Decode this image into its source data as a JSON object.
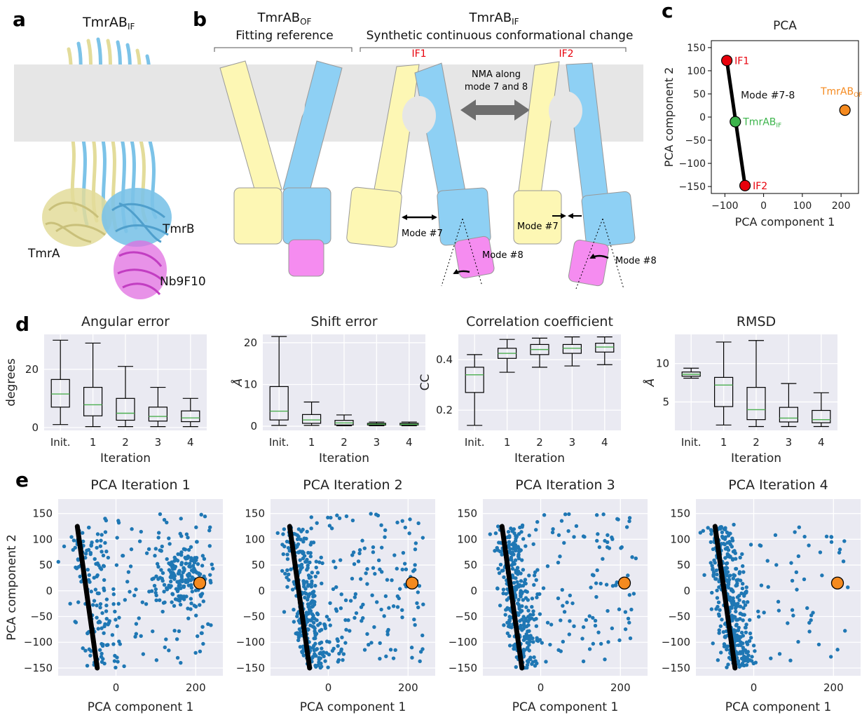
{
  "panels": {
    "a": {
      "letter": "a",
      "title_main": "TmrAB",
      "title_sub": "IF",
      "labels": {
        "tmra": "TmrA",
        "tmrb": "TmrB",
        "nb": "Nb9F10"
      },
      "colors": {
        "tmra": "#e3dc9a",
        "tmrb": "#7cc3e8",
        "nb": "#e06ee0"
      }
    },
    "b": {
      "letter": "b",
      "ref_title_main": "TmrAB",
      "ref_title_sub": "OF",
      "ref_subtitle": "Fitting reference",
      "syn_title_main": "TmrAB",
      "syn_title_sub": "IF",
      "syn_subtitle": "Synthetic continuous conformational change",
      "if1": "IF1",
      "if2": "IF2",
      "nma_line1": "NMA along",
      "nma_line2": "mode 7 and 8",
      "mode7": "Mode #7",
      "mode8": "Mode #8",
      "colors": {
        "yellow": "#fdf7b4",
        "blue": "#8ed0f4",
        "magenta": "#f58cf0",
        "membrane": "#e6e6e6",
        "red": "#e8000b"
      }
    },
    "c": {
      "letter": "c",
      "chart_data": {
        "type": "scatter",
        "title": "PCA",
        "xlabel": "PCA component 1",
        "ylabel": "PCA component 2",
        "xlim": [
          -135,
          245
        ],
        "ylim": [
          -165,
          165
        ],
        "xticks": [
          -100,
          0,
          100,
          200
        ],
        "yticks": [
          150,
          100,
          50,
          0,
          -50,
          -100,
          -150
        ],
        "line": {
          "label": "Mode #7-8",
          "x": [
            -95,
            -48
          ],
          "y": [
            122,
            -148
          ]
        },
        "points": [
          {
            "name": "IF1",
            "label": "IF1",
            "x": -95,
            "y": 122,
            "color": "#e8000b"
          },
          {
            "name": "TmrAB_IF",
            "label": "TmrAB",
            "label_sub": "IF",
            "x": -73,
            "y": -10,
            "color": "#3cb44b"
          },
          {
            "name": "IF2",
            "label": "IF2",
            "x": -48,
            "y": -148,
            "color": "#e8000b"
          },
          {
            "name": "TmrAB_OF",
            "label": "TmrAB",
            "label_sub": "OF",
            "x": 210,
            "y": 15,
            "color": "#f58a1f"
          }
        ]
      }
    },
    "d": {
      "letter": "d",
      "chart_data": [
        {
          "type": "box",
          "title": "Angular error",
          "xlabel": "Iteration",
          "ylabel": "degrees",
          "categories": [
            "Init.",
            "1",
            "2",
            "3",
            "4"
          ],
          "ylim": [
            -1,
            32
          ],
          "yticks": [
            0,
            20
          ],
          "boxes": [
            {
              "min": 1,
              "q1": 7,
              "median": 11.5,
              "q3": 16.5,
              "max": 30
            },
            {
              "min": 0.3,
              "q1": 4,
              "median": 7.8,
              "q3": 13.8,
              "max": 29
            },
            {
              "min": 0.3,
              "q1": 2.5,
              "median": 4.9,
              "q3": 10,
              "max": 21
            },
            {
              "min": 0.3,
              "q1": 2.2,
              "median": 3.8,
              "q3": 7,
              "max": 13.8
            },
            {
              "min": 0.3,
              "q1": 2,
              "median": 3.3,
              "q3": 5.7,
              "max": 10
            }
          ]
        },
        {
          "type": "box",
          "title": "Shift error",
          "xlabel": "Iteration",
          "ylabel": "Å",
          "categories": [
            "Init.",
            "1",
            "2",
            "3",
            "4"
          ],
          "ylim": [
            -1,
            22
          ],
          "yticks": [
            0,
            10,
            20
          ],
          "boxes": [
            {
              "min": 0.2,
              "q1": 1.5,
              "median": 3.6,
              "q3": 9.5,
              "max": 21.5
            },
            {
              "min": 0.2,
              "q1": 0.7,
              "median": 1.5,
              "q3": 2.8,
              "max": 5.8
            },
            {
              "min": 0.1,
              "q1": 0.3,
              "median": 0.8,
              "q3": 1.4,
              "max": 2.7
            },
            {
              "min": 0.1,
              "q1": 0.3,
              "median": 0.5,
              "q3": 0.7,
              "max": 1
            },
            {
              "min": 0.1,
              "q1": 0.3,
              "median": 0.45,
              "q3": 0.7,
              "max": 1
            }
          ]
        },
        {
          "type": "box",
          "title": "Correlation coefficient",
          "xlabel": "Iteration",
          "ylabel": "CC",
          "categories": [
            "Init.",
            "1",
            "2",
            "3",
            "4"
          ],
          "ylim": [
            0.12,
            0.5
          ],
          "yticks": [
            0.2,
            0.4
          ],
          "boxes": [
            {
              "min": 0.14,
              "q1": 0.27,
              "median": 0.34,
              "q3": 0.37,
              "max": 0.42
            },
            {
              "min": 0.35,
              "q1": 0.405,
              "median": 0.425,
              "q3": 0.445,
              "max": 0.48
            },
            {
              "min": 0.37,
              "q1": 0.42,
              "median": 0.44,
              "q3": 0.46,
              "max": 0.485
            },
            {
              "min": 0.375,
              "q1": 0.425,
              "median": 0.445,
              "q3": 0.46,
              "max": 0.49
            },
            {
              "min": 0.38,
              "q1": 0.43,
              "median": 0.45,
              "q3": 0.465,
              "max": 0.49
            }
          ]
        },
        {
          "type": "box",
          "title": "RMSD",
          "xlabel": "Iteration",
          "ylabel": "Å",
          "categories": [
            "Init.",
            "1",
            "2",
            "3",
            "4"
          ],
          "ylim": [
            1.3,
            13.8
          ],
          "yticks": [
            5,
            10
          ],
          "boxes": [
            {
              "min": 8.1,
              "q1": 8.35,
              "median": 8.6,
              "q3": 8.9,
              "max": 9.4
            },
            {
              "min": 2,
              "q1": 4.4,
              "median": 7.2,
              "q3": 8.2,
              "max": 12.8
            },
            {
              "min": 1.8,
              "q1": 2.7,
              "median": 4,
              "q3": 6.9,
              "max": 13
            },
            {
              "min": 1.8,
              "q1": 2.4,
              "median": 2.9,
              "q3": 4.3,
              "max": 7.4
            },
            {
              "min": 1.8,
              "q1": 2.3,
              "median": 2.7,
              "q3": 3.9,
              "max": 6.2
            }
          ]
        }
      ]
    },
    "e": {
      "letter": "e",
      "chart_data": [
        {
          "type": "scatter",
          "title": "PCA Iteration 1",
          "xlabel": "PCA component 1",
          "ylabel": "PCA component 2",
          "xlim": [
            -145,
            268
          ],
          "ylim": [
            -165,
            178
          ],
          "xticks": [
            0,
            200
          ],
          "yticks": [
            150,
            100,
            50,
            0,
            -50,
            -100,
            -150
          ],
          "n_points": 430,
          "tmrab_of": {
            "x": 210,
            "y": 15
          },
          "trajectory": {
            "x": [
              -97,
              -47
            ],
            "y": [
              125,
              -150
            ]
          }
        },
        {
          "type": "scatter",
          "title": "PCA Iteration 2",
          "xlabel": "PCA component 1",
          "ylabel": "PCA component 2",
          "xlim": [
            -145,
            268
          ],
          "ylim": [
            -165,
            178
          ],
          "xticks": [
            0,
            200
          ],
          "yticks": [
            150,
            100,
            50,
            0,
            -50,
            -100,
            -150
          ],
          "n_points": 430,
          "tmrab_of": {
            "x": 210,
            "y": 15
          },
          "trajectory": {
            "x": [
              -97,
              -47
            ],
            "y": [
              125,
              -150
            ]
          }
        },
        {
          "type": "scatter",
          "title": "PCA Iteration 3",
          "xlabel": "PCA component 1",
          "ylabel": "PCA component 2",
          "xlim": [
            -145,
            268
          ],
          "ylim": [
            -165,
            178
          ],
          "xticks": [
            0,
            200
          ],
          "yticks": [
            150,
            100,
            50,
            0,
            -50,
            -100,
            -150
          ],
          "n_points": 430,
          "tmrab_of": {
            "x": 210,
            "y": 15
          },
          "trajectory": {
            "x": [
              -97,
              -47
            ],
            "y": [
              125,
              -150
            ]
          }
        },
        {
          "type": "scatter",
          "title": "PCA Iteration 4",
          "xlabel": "PCA component 1",
          "ylabel": "PCA component 2",
          "xlim": [
            -145,
            268
          ],
          "ylim": [
            -165,
            178
          ],
          "xticks": [
            0,
            200
          ],
          "yticks": [
            150,
            100,
            50,
            0,
            -50,
            -100,
            -150
          ],
          "n_points": 430,
          "tmrab_of": {
            "x": 210,
            "y": 15
          },
          "trajectory": {
            "x": [
              -97,
              -47
            ],
            "y": [
              125,
              -150
            ]
          }
        }
      ]
    }
  },
  "colors": {
    "plot_bg": "#eaeaf2",
    "grid": "#ffffff",
    "dots": "#1f77b4",
    "orange": "#f58a1f",
    "median": "#4caf50"
  }
}
